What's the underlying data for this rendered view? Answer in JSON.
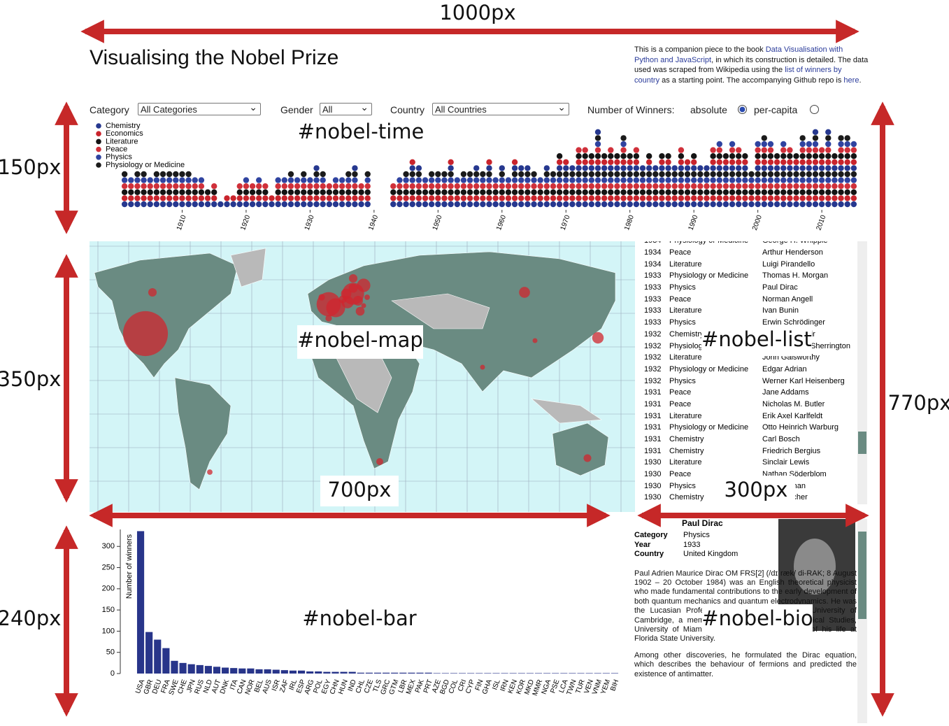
{
  "dimension_labels": [
    "1000px",
    "150px",
    "350px",
    "240px",
    "700px",
    "300px",
    "770px"
  ],
  "region_labels": [
    "#nobel-time",
    "#nobel-map",
    "#nobel-list",
    "#nobel-bar",
    "#nobel-bio"
  ],
  "header": {
    "title": "Visualising the Nobel Prize",
    "intro": [
      {
        "text": "This is a companion piece to the book "
      },
      {
        "text": "Data Visualisation with Python and JavaScript",
        "link": true
      },
      {
        "text": ", in which its construction is detailed. The data used was scraped from Wikipedia using the "
      },
      {
        "text": "list of winners by country",
        "link": true
      },
      {
        "text": " as a starting point. The accompanying Github repo is "
      },
      {
        "text": "here",
        "link": true
      },
      {
        "text": "."
      }
    ]
  },
  "controls": {
    "category_label": "Category",
    "category_value": "All Categories",
    "gender_label": "Gender",
    "gender_value": "All",
    "country_label": "Country",
    "country_value": "All Countries",
    "winners_label": "Number of Winners:",
    "absolute": "absolute",
    "per_capita": "per-capita"
  },
  "list": {
    "rows": [
      [
        "1934",
        "Physiology or Medicine",
        "George H. Whipple"
      ],
      [
        "1934",
        "Peace",
        "Arthur Henderson"
      ],
      [
        "1934",
        "Literature",
        "Luigi Pirandello"
      ],
      [
        "1933",
        "Physiology or Medicine",
        "Thomas H. Morgan"
      ],
      [
        "1933",
        "Physics",
        "Paul Dirac"
      ],
      [
        "1933",
        "Peace",
        "Norman Angell"
      ],
      [
        "1933",
        "Literature",
        "Ivan Bunin"
      ],
      [
        "1933",
        "Physics",
        "Erwin Schrödinger"
      ],
      [
        "1932",
        "Chemistry",
        "Irving Langmuir"
      ],
      [
        "1932",
        "Physiology or Medicine",
        "Charles Scott Sherrington"
      ],
      [
        "1932",
        "Literature",
        "John Galsworthy"
      ],
      [
        "1932",
        "Physiology or Medicine",
        "Edgar Adrian"
      ],
      [
        "1932",
        "Physics",
        "Werner Karl Heisenberg"
      ],
      [
        "1931",
        "Peace",
        "Jane Addams"
      ],
      [
        "1931",
        "Peace",
        "Nicholas M. Butler"
      ],
      [
        "1931",
        "Literature",
        "Erik Axel Karlfeldt"
      ],
      [
        "1931",
        "Physiology or Medicine",
        "Otto Heinrich Warburg"
      ],
      [
        "1931",
        "Chemistry",
        "Carl Bosch"
      ],
      [
        "1931",
        "Chemistry",
        "Friedrich Bergius"
      ],
      [
        "1930",
        "Literature",
        "Sinclair Lewis"
      ],
      [
        "1930",
        "Peace",
        "Nathan Söderblom"
      ],
      [
        "1930",
        "Physics",
        "C. V. Raman"
      ],
      [
        "1930",
        "Chemistry",
        "Hans Fischer"
      ]
    ]
  },
  "bio": {
    "name": "Paul Dirac",
    "fields": [
      [
        "Category",
        "Physics"
      ],
      [
        "Year",
        "1933"
      ],
      [
        "Country",
        "United Kingdom"
      ]
    ],
    "paragraphs": [
      "Paul Adrien Maurice Dirac OM FRS[2] (/dɪˈræk/ di-RAK; 8 August 1902 – 20 October 1984) was an English theoretical physicist who made fundamental contributions to the early development of both quantum mechanics and quantum electrodynamics. He was the Lucasian Professor of Mathematics at the University of Cambridge, a member of the Center for Theoretical Studies, University of Miami, and spent the last decade of his life at Florida State University.",
      "Among other discoveries, he formulated the Dirac equation, which describes the behaviour of fermions and predicted the existence of antimatter."
    ]
  },
  "chart_data": [
    {
      "type": "dot",
      "legend": [
        {
          "name": "Chemistry",
          "color": "#26388f"
        },
        {
          "name": "Economics",
          "color": "#c9242c"
        },
        {
          "name": "Literature",
          "color": "#141414"
        },
        {
          "name": "Peace",
          "color": "#d0303a"
        },
        {
          "name": "Physics",
          "color": "#2f43a0"
        },
        {
          "name": "Physiology or Medicine",
          "color": "#1b1b1b"
        }
      ],
      "x": [
        1901,
        1902,
        1903,
        1904,
        1905,
        1906,
        1907,
        1908,
        1909,
        1910,
        1911,
        1912,
        1913,
        1914,
        1915,
        1916,
        1917,
        1918,
        1919,
        1920,
        1921,
        1922,
        1923,
        1924,
        1925,
        1926,
        1927,
        1928,
        1929,
        1930,
        1931,
        1932,
        1933,
        1934,
        1935,
        1936,
        1937,
        1938,
        1939,
        1940,
        1941,
        1942,
        1943,
        1944,
        1945,
        1946,
        1947,
        1948,
        1949,
        1950,
        1951,
        1952,
        1953,
        1954,
        1955,
        1956,
        1957,
        1958,
        1959,
        1960,
        1961,
        1962,
        1963,
        1964,
        1965,
        1966,
        1967,
        1968,
        1969,
        1970,
        1971,
        1972,
        1973,
        1974,
        1975,
        1976,
        1977,
        1978,
        1979,
        1980,
        1981,
        1982,
        1983,
        1984,
        1985,
        1986,
        1987,
        1988,
        1989,
        1990,
        1991,
        1992,
        1993,
        1994,
        1995,
        1996,
        1997,
        1998,
        1999,
        2000,
        2001,
        2002,
        2003,
        2004,
        2005,
        2006,
        2007,
        2008,
        2009,
        2010,
        2011,
        2012,
        2013,
        2014,
        2015
      ],
      "values": [
        6,
        5,
        6,
        6,
        5,
        6,
        6,
        6,
        6,
        6,
        6,
        5,
        5,
        3,
        4,
        1,
        2,
        2,
        4,
        5,
        4,
        5,
        4,
        2,
        5,
        5,
        6,
        5,
        6,
        5,
        7,
        6,
        4,
        5,
        5,
        6,
        7,
        4,
        6,
        0,
        0,
        0,
        4,
        5,
        6,
        8,
        7,
        5,
        6,
        6,
        6,
        8,
        5,
        6,
        6,
        7,
        6,
        8,
        5,
        7,
        5,
        8,
        7,
        7,
        6,
        5,
        7,
        6,
        9,
        8,
        7,
        10,
        10,
        9,
        13,
        9,
        10,
        9,
        12,
        9,
        10,
        7,
        9,
        7,
        9,
        9,
        7,
        10,
        8,
        9,
        7,
        7,
        10,
        11,
        9,
        11,
        10,
        9,
        6,
        11,
        12,
        11,
        9,
        11,
        10,
        9,
        12,
        11,
        13,
        10,
        13,
        9,
        12,
        12,
        11
      ],
      "xlim": [
        1900,
        2016
      ],
      "xticks": [
        1910,
        1920,
        1930,
        1940,
        1950,
        1960,
        1970,
        1980,
        1990,
        2000,
        2010
      ]
    },
    {
      "type": "bar",
      "ylabel": "Number of winners",
      "color": "#28358a",
      "categories": [
        "USA",
        "GBR",
        "DEU",
        "FRA",
        "SWE",
        "CHE",
        "JPN",
        "RUS",
        "NLD",
        "AUT",
        "DNK",
        "ITA",
        "CAN",
        "NOR",
        "BEL",
        "AUS",
        "ISR",
        "ZAF",
        "IRL",
        "ESP",
        "ARG",
        "POL",
        "EGY",
        "CHN",
        "HUN",
        "IND",
        "CHL",
        "CZE",
        "TLS",
        "GRC",
        "GTM",
        "LBR",
        "MEX",
        "PAK",
        "PRT",
        "AZE",
        "BGD",
        "COL",
        "CRI",
        "CYP",
        "FIN",
        "GHA",
        "ISL",
        "IRN",
        "KEN",
        "KOR",
        "MKD",
        "MMR",
        "NGA",
        "PSE",
        "LCA",
        "TWN",
        "TUR",
        "VEN",
        "VNM",
        "YEM",
        "BIH"
      ],
      "values": [
        336,
        98,
        80,
        60,
        30,
        25,
        22,
        20,
        18,
        16,
        14,
        13,
        12,
        12,
        10,
        10,
        9,
        8,
        7,
        7,
        5,
        5,
        4,
        4,
        4,
        4,
        2,
        2,
        2,
        2,
        2,
        2,
        2,
        2,
        2,
        1,
        1,
        1,
        1,
        1,
        1,
        1,
        1,
        1,
        1,
        1,
        1,
        1,
        1,
        1,
        1,
        1,
        1,
        1,
        1,
        1,
        1
      ],
      "ylim": [
        0,
        340
      ],
      "yticks": [
        0,
        50,
        100,
        150,
        200,
        250,
        300
      ]
    }
  ]
}
